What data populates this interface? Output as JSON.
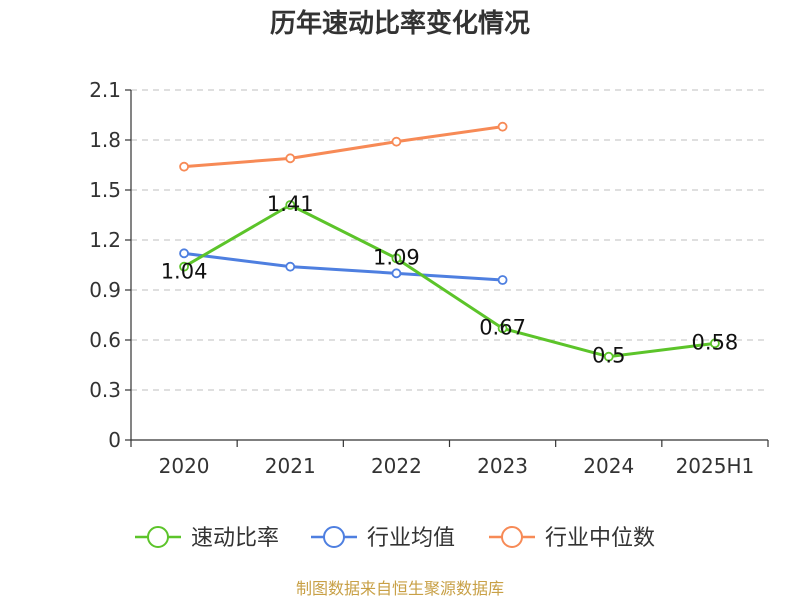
{
  "chart_data": {
    "type": "line",
    "title": "历年速动比率变化情况",
    "categories": [
      "2020",
      "2021",
      "2022",
      "2023",
      "2024",
      "2025H1"
    ],
    "y_ticks": [
      "0",
      "0.3",
      "0.6",
      "0.9",
      "1.2",
      "1.5",
      "1.8",
      "2.1"
    ],
    "ylim": [
      0,
      2.1
    ],
    "grid": true,
    "legend_position": "bottom",
    "series": [
      {
        "name": "速动比率",
        "color": "#5cc42a",
        "values": [
          1.04,
          1.41,
          1.09,
          0.67,
          0.5,
          0.58
        ],
        "labels": [
          "1.04",
          "1.41",
          "1.09",
          "0.67",
          "0.5",
          "0.58"
        ]
      },
      {
        "name": "行业均值",
        "color": "#4e7fe0",
        "values": [
          1.12,
          1.04,
          1.0,
          0.96,
          null,
          null
        ],
        "labels": []
      },
      {
        "name": "行业中位数",
        "color": "#f78a56",
        "values": [
          1.64,
          1.69,
          1.79,
          1.88,
          null,
          null
        ],
        "labels": []
      }
    ],
    "source": "制图数据来自恒生聚源数据库"
  }
}
